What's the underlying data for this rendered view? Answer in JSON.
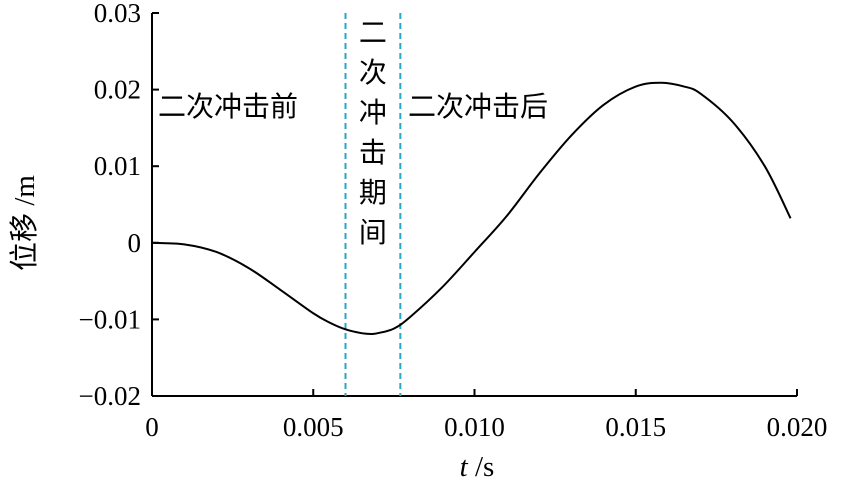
{
  "chart_data": {
    "type": "line",
    "title": "",
    "xlabel": "t /s",
    "ylabel": "位移 /m",
    "xlim": [
      0,
      0.02
    ],
    "ylim": [
      -0.02,
      0.03
    ],
    "x_ticks": [
      0,
      0.005,
      0.01,
      0.015,
      0.02
    ],
    "x_tick_labels": [
      "0",
      "0.005",
      "0.010",
      "0.015",
      "0.020"
    ],
    "y_ticks": [
      -0.02,
      -0.01,
      0,
      0.01,
      0.02,
      0.03
    ],
    "y_tick_labels": [
      "−0.02",
      "−0.01",
      "0",
      "0.01",
      "0.02",
      "0.03"
    ],
    "grid": false,
    "series": [
      {
        "color": "#000000",
        "x": [
          0,
          0.001,
          0.002,
          0.003,
          0.004,
          0.005,
          0.0055,
          0.006,
          0.0065,
          0.0068,
          0.007,
          0.0075,
          0.008,
          0.009,
          0.01,
          0.011,
          0.012,
          0.013,
          0.014,
          0.015,
          0.0158,
          0.0165,
          0.017,
          0.018,
          0.019,
          0.0198
        ],
        "y": [
          0,
          -0.0002,
          -0.0012,
          -0.0033,
          -0.0062,
          -0.0092,
          -0.0104,
          -0.0113,
          -0.0118,
          -0.0119,
          -0.0118,
          -0.0112,
          -0.0097,
          -0.0058,
          -0.0012,
          0.0035,
          0.009,
          0.014,
          0.018,
          0.0204,
          0.0209,
          0.0204,
          0.0195,
          0.0158,
          0.01,
          0.0032
        ]
      }
    ],
    "vlines": {
      "x": [
        0.006,
        0.0077
      ],
      "color": "#2aa6c9",
      "style": "dashed"
    },
    "annotations": {
      "before": "二次冲击前",
      "during": "二次冲击期间",
      "after": "二次冲击后"
    }
  }
}
